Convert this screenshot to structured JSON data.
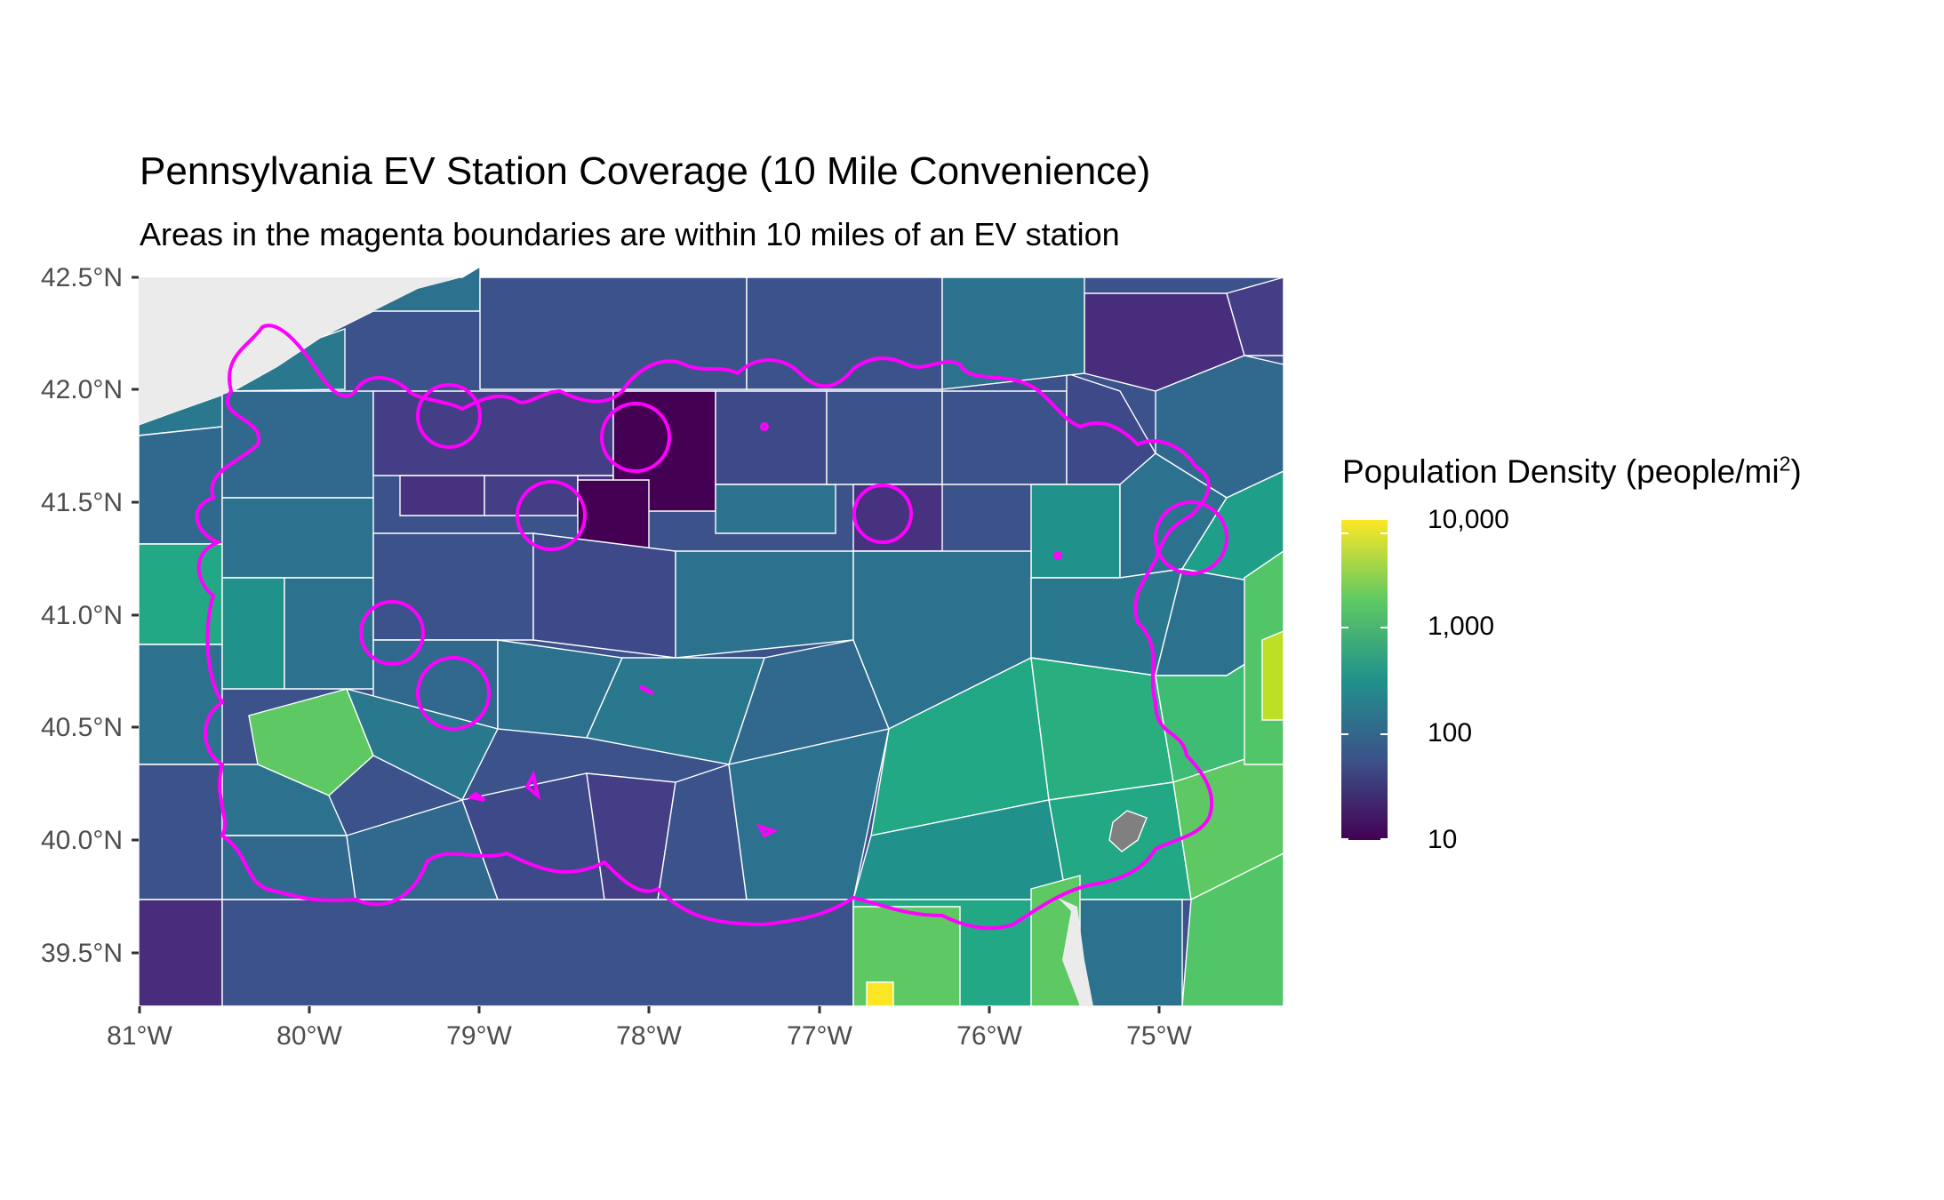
{
  "title": "Pennsylvania EV Station Coverage (10 Mile Convenience)",
  "subtitle": "Areas in the magenta boundaries are within 10 miles of an EV station",
  "legend": {
    "title": "Population Density (people/mi",
    "title_sup": "2",
    "title_close": ")",
    "ticks": [
      {
        "label": "10,000",
        "value": 10000
      },
      {
        "label": "1,000",
        "value": 1000
      },
      {
        "label": "100",
        "value": 100
      },
      {
        "label": "10",
        "value": 10
      }
    ],
    "scale": "log10",
    "range": [
      10,
      10000
    ],
    "palette": [
      "#440154",
      "#3b528b",
      "#21918c",
      "#5ec962",
      "#fde725"
    ]
  },
  "axes": {
    "lat_labels": [
      "42.5°N",
      "42.0°N",
      "41.5°N",
      "41.0°N",
      "40.5°N",
      "40.0°N",
      "39.5°N"
    ],
    "lon_labels": [
      "81°W",
      "80°W",
      "79°W",
      "78°W",
      "77°W",
      "76°W",
      "75°W"
    ],
    "lat_values": [
      42.5,
      42.0,
      41.5,
      41.0,
      40.5,
      40.0,
      39.5
    ],
    "lon_values": [
      -81,
      -80,
      -79,
      -78,
      -77,
      -76,
      -75
    ]
  },
  "colors": {
    "coverage_boundary": "#ff00ff",
    "county_border": "#ffffff",
    "background": "#ebebeb",
    "missing": "#808080"
  }
}
